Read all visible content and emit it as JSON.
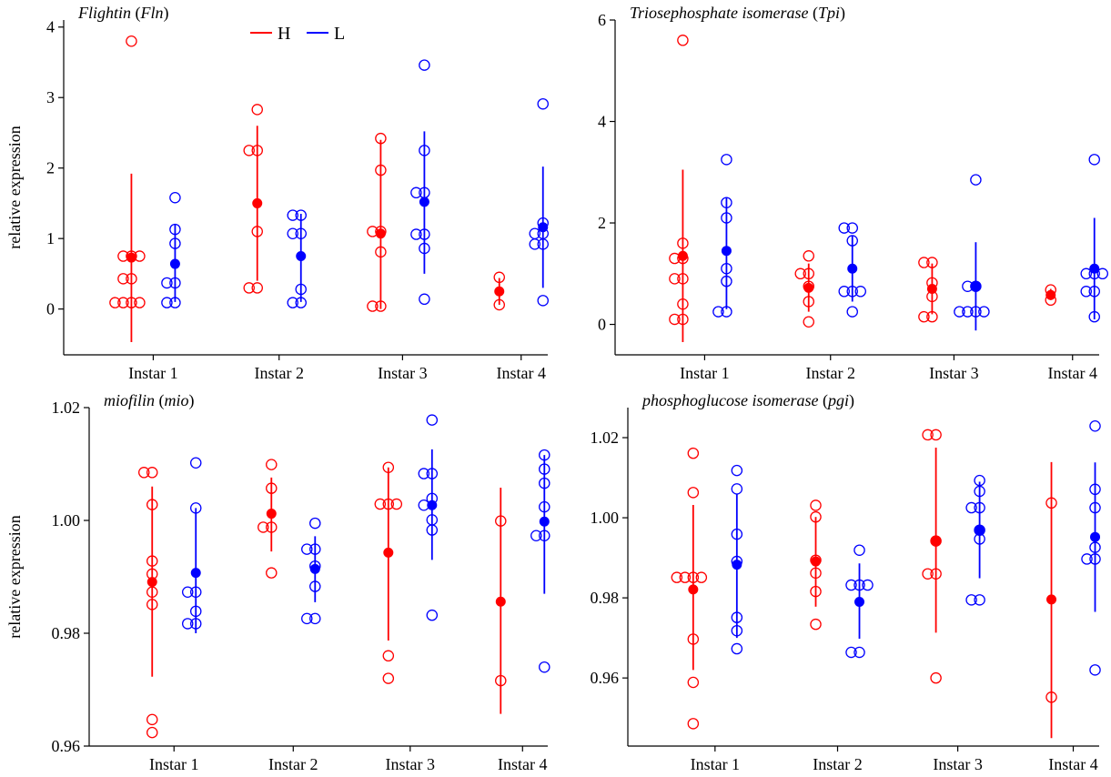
{
  "colors": {
    "H": "#ff0000",
    "L": "#0000ff"
  },
  "legend": [
    {
      "key": "H",
      "label": "H"
    },
    {
      "key": "L",
      "label": "L"
    }
  ],
  "chart_data": [
    {
      "type": "scatter",
      "title_main": "Flightin",
      "title_abbr": "Fln",
      "ylabel": "relative expression",
      "categories": [
        "Instar 1",
        "Instar 2",
        "Instar 3",
        "Instar 4"
      ],
      "ylim": [
        -0.65,
        4.1
      ],
      "yticks": [
        0,
        1,
        2,
        3,
        4
      ],
      "yticklabels": [
        "0",
        "1",
        "2",
        "3",
        "4"
      ],
      "groups": [
        {
          "cat": 0,
          "series": "H",
          "points": [
            3.8,
            0.75,
            0.75,
            0.75,
            0.43,
            0.43,
            0.09,
            0.09,
            0.09,
            0.09
          ],
          "mean": 0.73,
          "lo": -0.47,
          "hi": 1.92
        },
        {
          "cat": 0,
          "series": "L",
          "points": [
            1.58,
            1.13,
            0.93,
            0.37,
            0.37,
            0.09,
            0.09
          ],
          "mean": 0.64,
          "lo": 0.1,
          "hi": 1.2
        },
        {
          "cat": 1,
          "series": "H",
          "points": [
            2.83,
            2.25,
            2.25,
            1.1,
            0.3,
            0.3
          ],
          "mean": 1.5,
          "lo": 0.4,
          "hi": 2.6
        },
        {
          "cat": 1,
          "series": "L",
          "points": [
            1.33,
            1.33,
            1.07,
            1.07,
            0.28,
            0.09,
            0.09
          ],
          "mean": 0.75,
          "lo": 0.1,
          "hi": 1.35
        },
        {
          "cat": 2,
          "series": "H",
          "points": [
            2.42,
            1.97,
            1.1,
            1.1,
            0.81,
            0.04,
            0.04
          ],
          "mean": 1.07,
          "lo": 0.0,
          "hi": 2.4
        },
        {
          "cat": 2,
          "series": "L",
          "points": [
            3.46,
            2.25,
            1.65,
            1.65,
            1.06,
            1.06,
            0.86,
            0.14
          ],
          "mean": 1.52,
          "lo": 0.5,
          "hi": 2.52
        },
        {
          "cat": 3,
          "series": "H",
          "points": [
            0.45,
            0.06
          ],
          "mean": 0.25,
          "lo": 0.06,
          "hi": 0.44
        },
        {
          "cat": 3,
          "series": "L",
          "points": [
            2.91,
            1.22,
            1.07,
            1.07,
            0.92,
            0.92,
            0.12
          ],
          "mean": 1.16,
          "lo": 0.3,
          "hi": 2.02
        }
      ]
    },
    {
      "type": "scatter",
      "title_main": "Triosephosphate isomerase",
      "title_abbr": "Tpi",
      "ylabel": "",
      "categories": [
        "Instar 1",
        "Instar 2",
        "Instar 3",
        "Instar 4"
      ],
      "ylim": [
        -0.6,
        6.0
      ],
      "yticks": [
        0,
        2,
        4,
        6
      ],
      "yticklabels": [
        "0",
        "2",
        "4",
        "6"
      ],
      "groups": [
        {
          "cat": 0,
          "series": "H",
          "points": [
            5.6,
            1.6,
            1.3,
            1.3,
            0.9,
            0.9,
            0.4,
            0.1,
            0.1
          ],
          "mean": 1.35,
          "lo": -0.35,
          "hi": 3.05
        },
        {
          "cat": 0,
          "series": "L",
          "points": [
            3.25,
            2.4,
            2.1,
            1.1,
            0.85,
            0.25,
            0.25
          ],
          "mean": 1.45,
          "lo": 0.3,
          "hi": 2.5
        },
        {
          "cat": 1,
          "series": "H",
          "points": [
            1.35,
            1.0,
            1.0,
            0.75,
            0.45,
            0.05
          ],
          "mean": 0.72,
          "lo": 0.25,
          "hi": 1.2
        },
        {
          "cat": 1,
          "series": "L",
          "points": [
            1.9,
            1.9,
            1.65,
            0.65,
            0.65,
            0.65,
            0.25
          ],
          "mean": 1.1,
          "lo": 0.45,
          "hi": 1.75
        },
        {
          "cat": 2,
          "series": "H",
          "points": [
            1.22,
            1.22,
            0.82,
            0.55,
            0.15,
            0.15
          ],
          "mean": 0.7,
          "lo": 0.2,
          "hi": 1.2
        },
        {
          "cat": 2,
          "series": "L",
          "points": [
            2.85,
            0.75,
            0.75,
            0.25,
            0.25,
            0.25,
            0.25
          ],
          "mean": 0.75,
          "lo": -0.12,
          "hi": 1.62
        },
        {
          "cat": 3,
          "series": "H",
          "points": [
            0.68,
            0.48
          ],
          "mean": 0.58,
          "lo": 0.48,
          "hi": 0.7
        },
        {
          "cat": 3,
          "series": "L",
          "points": [
            3.25,
            1.0,
            1.0,
            1.0,
            0.65,
            0.65,
            0.15
          ],
          "mean": 1.1,
          "lo": 0.1,
          "hi": 2.1
        }
      ]
    },
    {
      "type": "scatter",
      "title_main": "miofilin",
      "title_abbr": "mio",
      "ylabel": "relative expression",
      "categories": [
        "Instar 1",
        "Instar 2",
        "Instar 3",
        "Instar 4"
      ],
      "ylim": [
        0.96,
        1.02
      ],
      "yticks": [
        0.96,
        0.98,
        1.0,
        1.02
      ],
      "yticklabels": [
        "0.96",
        "0.98",
        "1.00",
        "1.02"
      ],
      "groups": [
        {
          "cat": 0,
          "series": "H",
          "points": [
            1.0085,
            1.0085,
            1.0028,
            0.9928,
            0.9905,
            0.9873,
            0.9851,
            0.9647,
            0.9624
          ],
          "mean": 0.9891,
          "lo": 0.9723,
          "hi": 1.006
        },
        {
          "cat": 0,
          "series": "L",
          "points": [
            1.0102,
            1.0022,
            0.9873,
            0.9873,
            0.9839,
            0.9817,
            0.9817
          ],
          "mean": 0.9907,
          "lo": 0.98,
          "hi": 1.0022
        },
        {
          "cat": 1,
          "series": "H",
          "points": [
            1.0099,
            1.0057,
            0.9988,
            0.9988,
            0.9907
          ],
          "mean": 1.0012,
          "lo": 0.9945,
          "hi": 1.0076
        },
        {
          "cat": 1,
          "series": "L",
          "points": [
            0.9995,
            0.9949,
            0.9949,
            0.9919,
            0.9883,
            0.9826,
            0.9826
          ],
          "mean": 0.9914,
          "lo": 0.9855,
          "hi": 0.9972
        },
        {
          "cat": 2,
          "series": "H",
          "points": [
            1.0094,
            1.0029,
            1.0029,
            1.0029,
            0.976,
            0.972
          ],
          "mean": 0.9943,
          "lo": 0.9787,
          "hi": 1.0094
        },
        {
          "cat": 2,
          "series": "L",
          "points": [
            1.0178,
            1.0083,
            1.0083,
            1.0039,
            1.0027,
            1.0001,
            0.9983,
            0.9832
          ],
          "mean": 1.0027,
          "lo": 0.993,
          "hi": 1.0126
        },
        {
          "cat": 3,
          "series": "H",
          "points": [
            0.9999,
            0.9716
          ],
          "mean": 0.9856,
          "lo": 0.9657,
          "hi": 1.0058
        },
        {
          "cat": 3,
          "series": "L",
          "points": [
            1.0116,
            1.0091,
            1.0066,
            1.0024,
            0.9973,
            0.9973,
            0.974
          ],
          "mean": 0.9998,
          "lo": 0.987,
          "hi": 1.0116
        }
      ]
    },
    {
      "type": "scatter",
      "title_main": "phosphoglucose isomerase",
      "title_abbr": "pgi",
      "ylabel": "",
      "categories": [
        "Instar 1",
        "Instar 2",
        "Instar 3",
        "Instar 4"
      ],
      "ylim": [
        0.943,
        1.0275
      ],
      "yticks": [
        0.96,
        0.98,
        1.0,
        1.02
      ],
      "yticklabels": [
        "0.96",
        "0.98",
        "1.00",
        "1.02"
      ],
      "groups": [
        {
          "cat": 0,
          "series": "H",
          "points": [
            1.0161,
            1.0063,
            0.9851,
            0.9851,
            0.9851,
            0.9851,
            0.9697,
            0.9589,
            0.9486
          ],
          "mean": 0.9821,
          "lo": 0.962,
          "hi": 1.0032
        },
        {
          "cat": 0,
          "series": "L",
          "points": [
            1.0118,
            1.0072,
            0.9959,
            0.9891,
            0.9751,
            0.9718,
            0.9673
          ],
          "mean": 0.9883,
          "lo": 0.97,
          "hi": 1.0058
        },
        {
          "cat": 1,
          "series": "H",
          "points": [
            1.0031,
            1.0002,
            0.9894,
            0.9862,
            0.9816,
            0.9734
          ],
          "mean": 0.9891,
          "lo": 0.9778,
          "hi": 1.0002
        },
        {
          "cat": 1,
          "series": "L",
          "points": [
            0.9919,
            0.9832,
            0.9832,
            0.9832,
            0.9664,
            0.9664
          ],
          "mean": 0.979,
          "lo": 0.9698,
          "hi": 0.9886
        },
        {
          "cat": 2,
          "series": "H",
          "points": [
            1.0207,
            1.0207,
            0.9942,
            0.986,
            0.986,
            0.96
          ],
          "mean": 0.9943,
          "lo": 0.9713,
          "hi": 1.0175
        },
        {
          "cat": 2,
          "series": "L",
          "points": [
            1.0093,
            1.0066,
            1.0025,
            1.0025,
            0.9969,
            0.9947,
            0.9795,
            0.9795
          ],
          "mean": 0.9968,
          "lo": 0.9849,
          "hi": 1.009
        },
        {
          "cat": 3,
          "series": "H",
          "points": [
            1.0037,
            0.9552
          ],
          "mean": 0.9796,
          "lo": 0.945,
          "hi": 1.0139
        },
        {
          "cat": 3,
          "series": "L",
          "points": [
            1.0229,
            1.0071,
            1.0025,
            0.9926,
            0.9897,
            0.9897,
            0.962
          ],
          "mean": 0.9952,
          "lo": 0.9765,
          "hi": 1.0138
        }
      ]
    }
  ]
}
